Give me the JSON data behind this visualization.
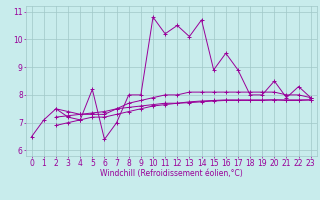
{
  "title": "",
  "xlabel": "Windchill (Refroidissement éolien,°C)",
  "background_color": "#c8ecec",
  "grid_color": "#a0c8c8",
  "line_color": "#990099",
  "xlim": [
    -0.5,
    23.5
  ],
  "ylim": [
    5.8,
    11.2
  ],
  "yticks": [
    6,
    7,
    8,
    9,
    10,
    11
  ],
  "xticks": [
    0,
    1,
    2,
    3,
    4,
    5,
    6,
    7,
    8,
    9,
    10,
    11,
    12,
    13,
    14,
    15,
    16,
    17,
    18,
    19,
    20,
    21,
    22,
    23
  ],
  "series": [
    [
      6.5,
      7.1,
      7.5,
      7.2,
      7.1,
      8.2,
      6.4,
      7.0,
      8.0,
      8.0,
      10.8,
      10.2,
      10.5,
      10.1,
      10.7,
      8.9,
      9.5,
      8.9,
      8.0,
      8.0,
      8.5,
      7.9,
      8.3,
      7.9
    ],
    [
      null,
      null,
      7.5,
      7.4,
      7.3,
      7.3,
      7.3,
      7.5,
      7.7,
      7.8,
      7.9,
      8.0,
      8.0,
      8.1,
      8.1,
      8.1,
      8.1,
      8.1,
      8.1,
      8.1,
      8.1,
      8.0,
      8.0,
      7.9
    ],
    [
      null,
      null,
      7.2,
      7.25,
      7.3,
      7.35,
      7.4,
      7.5,
      7.55,
      7.6,
      7.65,
      7.7,
      7.7,
      7.75,
      7.78,
      7.8,
      7.82,
      7.82,
      7.82,
      7.82,
      7.82,
      7.8,
      7.8,
      7.82
    ],
    [
      null,
      null,
      6.9,
      7.0,
      7.1,
      7.2,
      7.2,
      7.3,
      7.4,
      7.5,
      7.6,
      7.65,
      7.7,
      7.72,
      7.75,
      7.78,
      7.8,
      7.8,
      7.8,
      7.8,
      7.82,
      7.82,
      7.82,
      7.82
    ]
  ],
  "figsize": [
    3.2,
    2.0
  ],
  "dpi": 100,
  "tick_labelsize": 5.5,
  "xlabel_fontsize": 5.5,
  "linewidth": 0.7,
  "markersize": 2.5,
  "markeredgewidth": 0.7
}
